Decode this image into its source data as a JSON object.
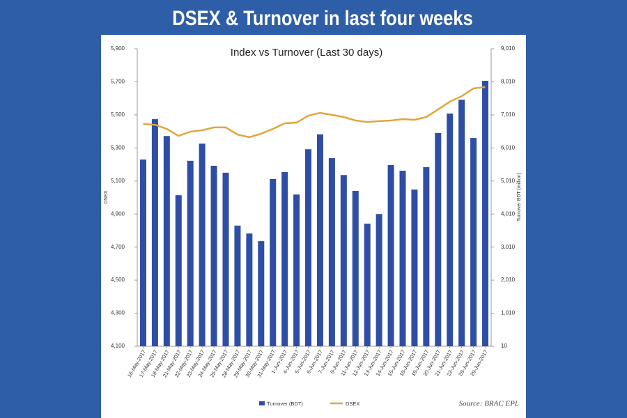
{
  "header": {
    "title": "DSEX & Turnover in last four weeks"
  },
  "chart_data": {
    "type": "combo",
    "title": "Index vs Turnover (Last 30 days)",
    "y_label": "DSEX",
    "y2_label": "Turnover BDT (million)",
    "source": "Source: BRAC EPL",
    "categories": [
      "16-May-2017",
      "17-May-2017",
      "18-May-2017",
      "21-May-2017",
      "22-May-2017",
      "23-May-2017",
      "24-May-2017",
      "25-May-2017",
      "28-May-2017",
      "29-May-2017",
      "30-May-2017",
      "31-May-2017",
      "1-Jun-2017",
      "4-Jun-2017",
      "5-Jun-2017",
      "6-Jun-2017",
      "7-Jun-2017",
      "8-Jun-2017",
      "11-Jun-2017",
      "12-Jun-2017",
      "13-Jun-2017",
      "14-Jun-2017",
      "15-Jun-2017",
      "18-Jun-2017",
      "19-Jun-2017",
      "20-Jun-2017",
      "21-Jun-2017",
      "22-Jun-2017",
      "28-Jun-2017",
      "29-Jun-2017"
    ],
    "series": [
      {
        "name": "Turnover (BDT)",
        "type": "bar",
        "axis": "y2",
        "color": "#2e4ea6",
        "values": [
          5660,
          6880,
          6370,
          4580,
          5620,
          6140,
          5470,
          5260,
          3660,
          3420,
          3190,
          5070,
          5280,
          4600,
          5970,
          6420,
          5700,
          5190,
          4710,
          3720,
          4010,
          5490,
          5320,
          4750,
          5430,
          6460,
          7050,
          7470,
          6310,
          8040
        ]
      },
      {
        "name": "DSEX",
        "type": "line",
        "color": "#e2a53c",
        "values": [
          5445,
          5440,
          5415,
          5373,
          5398,
          5407,
          5424,
          5424,
          5381,
          5365,
          5386,
          5415,
          5449,
          5453,
          5495,
          5512,
          5500,
          5487,
          5466,
          5457,
          5462,
          5466,
          5474,
          5470,
          5487,
          5533,
          5580,
          5613,
          5660,
          5668
        ]
      }
    ],
    "ylim": [
      4100,
      5900
    ],
    "yticks": [
      {
        "value": 4100,
        "label": "4,100"
      },
      {
        "value": 4300,
        "label": "4,300"
      },
      {
        "value": 4500,
        "label": "4,500"
      },
      {
        "value": 4700,
        "label": "4,700"
      },
      {
        "value": 4900,
        "label": "4,900"
      },
      {
        "value": 5100,
        "label": "5,100"
      },
      {
        "value": 5300,
        "label": "5,300"
      },
      {
        "value": 5500,
        "label": "5,500"
      },
      {
        "value": 5700,
        "label": "5,700"
      },
      {
        "value": 5900,
        "label": "5,900"
      }
    ],
    "y2lim": [
      10,
      9010
    ],
    "y2ticks": [
      10,
      {
        "value": 1010,
        "label": "1,010"
      },
      {
        "value": 2010,
        "label": "2,010"
      },
      {
        "value": 3010,
        "label": "3,010"
      },
      {
        "value": 4010,
        "label": "4,010"
      },
      {
        "value": 5010,
        "label": "5,010"
      },
      {
        "value": 6010,
        "label": "6,010"
      },
      {
        "value": 7010,
        "label": "7,010"
      },
      {
        "value": 8010,
        "label": "8,010"
      },
      {
        "value": 9010,
        "label": "9,010"
      }
    ],
    "grid": false,
    "legend": "bottom"
  }
}
